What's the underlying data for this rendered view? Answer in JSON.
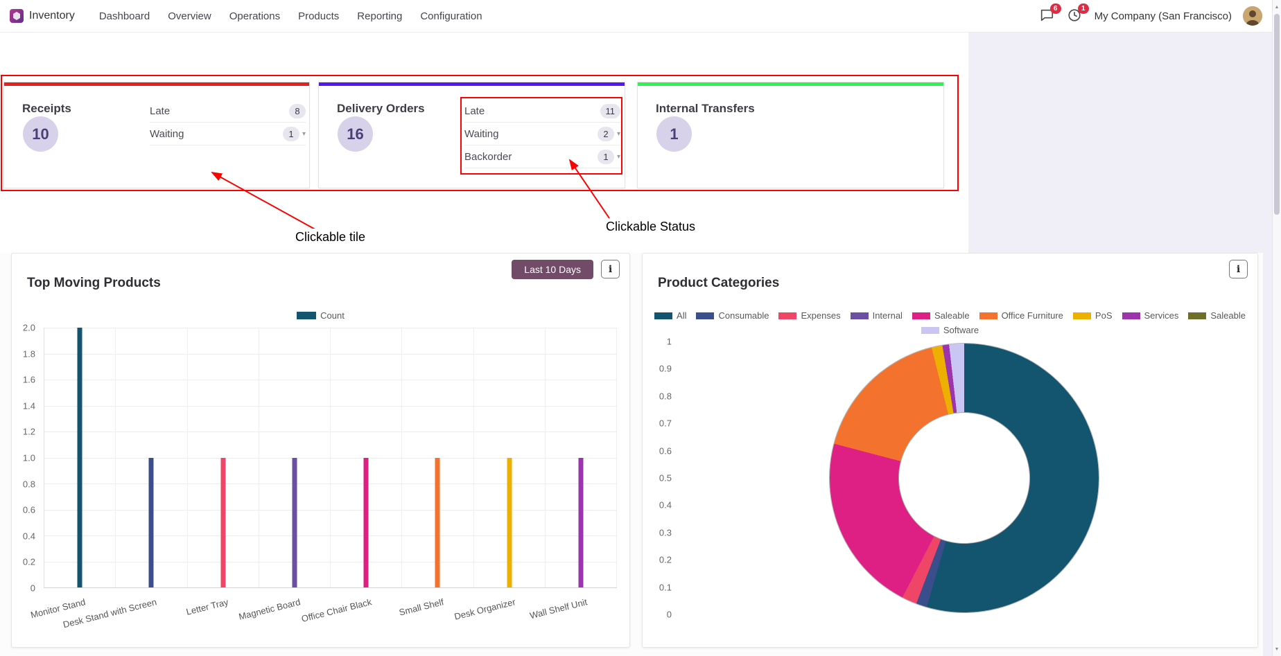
{
  "navbar": {
    "app_name": "Inventory",
    "menus": [
      "Dashboard",
      "Overview",
      "Operations",
      "Products",
      "Reporting",
      "Configuration"
    ],
    "messages_badge": "6",
    "activities_badge": "1",
    "company": "My Company (San Francisco)",
    "badge_color": "#e02b45"
  },
  "icons": {
    "info": "i",
    "caret_down": "▾",
    "scroll_up": "▲",
    "scroll_down": "▼"
  },
  "annotations": {
    "color": "#ff0000",
    "tile_label": "Clickable tile",
    "status_label": "Clickable Status"
  },
  "tiles": [
    {
      "title": "Receipts",
      "count": "10",
      "accent_color": "#e5201d",
      "statuses": [
        {
          "label": "Late",
          "count": "8",
          "caret": false
        },
        {
          "label": "Waiting",
          "count": "1",
          "caret": true
        }
      ]
    },
    {
      "title": "Delivery Orders",
      "count": "16",
      "accent_color": "#5618f0",
      "statuses": [
        {
          "label": "Late",
          "count": "11",
          "caret": false
        },
        {
          "label": "Waiting",
          "count": "2",
          "caret": true
        },
        {
          "label": "Backorder",
          "count": "1",
          "caret": true
        }
      ]
    },
    {
      "title": "Internal Transfers",
      "count": "1",
      "accent_color": "#2df353",
      "statuses": []
    }
  ],
  "chart_data": [
    {
      "type": "bar",
      "title": "Top Moving Products",
      "filter_button": "Last 10 Days",
      "legend": [
        {
          "label": "Count",
          "color": "#13556e"
        }
      ],
      "legend_position": "top",
      "categories": [
        "Monitor Stand",
        "Desk Stand with Screen",
        "Letter Tray",
        "Magnetic Board",
        "Office Chair Black",
        "Small Shelf",
        "Desk Organizer",
        "Wall Shelf Unit"
      ],
      "values": [
        2,
        1,
        1,
        1,
        1,
        1,
        1,
        1
      ],
      "bar_colors": [
        "#13556e",
        "#3b4e8c",
        "#ef4566",
        "#6a4fa3",
        "#de1f83",
        "#f2722e",
        "#eeb000",
        "#9c34ad"
      ],
      "xlabel": "",
      "ylabel": "",
      "ylim": [
        0,
        2
      ],
      "ytick_step": 0.2,
      "grid": true
    },
    {
      "type": "pie",
      "subtype": "donut",
      "title": "Product Categories",
      "legend_position": "top",
      "legend_rows": [
        [
          {
            "label": "All",
            "color": "#13556e"
          },
          {
            "label": "Consumable",
            "color": "#3b4e8c"
          },
          {
            "label": "Expenses",
            "color": "#ef4566"
          },
          {
            "label": "Internal",
            "color": "#6a4fa3"
          },
          {
            "label": "Saleable",
            "color": "#de1f83"
          },
          {
            "label": "Office Furniture",
            "color": "#f2722e"
          },
          {
            "label": "PoS",
            "color": "#eeb000"
          },
          {
            "label": "Services",
            "color": "#9c34ad"
          },
          {
            "label": "Saleable",
            "color": "#6e6e28"
          }
        ],
        [
          {
            "label": "Software",
            "color": "#c9c6f4"
          }
        ]
      ],
      "series": [
        {
          "label": "All",
          "value": 0.545,
          "color": "#13556e"
        },
        {
          "label": "Consumable",
          "value": 0.013,
          "color": "#3b4e8c"
        },
        {
          "label": "Expenses",
          "value": 0.018,
          "color": "#ef4566"
        },
        {
          "label": "Saleable",
          "value": 0.215,
          "color": "#de1f83"
        },
        {
          "label": "Office Furniture",
          "value": 0.17,
          "color": "#f2722e"
        },
        {
          "label": "PoS",
          "value": 0.013,
          "color": "#eeb000"
        },
        {
          "label": "Services",
          "value": 0.008,
          "color": "#9c34ad"
        },
        {
          "label": "Software",
          "value": 0.018,
          "color": "#c9c6f4"
        }
      ],
      "axis_ticks": [
        "1",
        "0.9",
        "0.8",
        "0.7",
        "0.6",
        "0.5",
        "0.4",
        "0.3",
        "0.2",
        "0.1",
        "0"
      ]
    }
  ]
}
